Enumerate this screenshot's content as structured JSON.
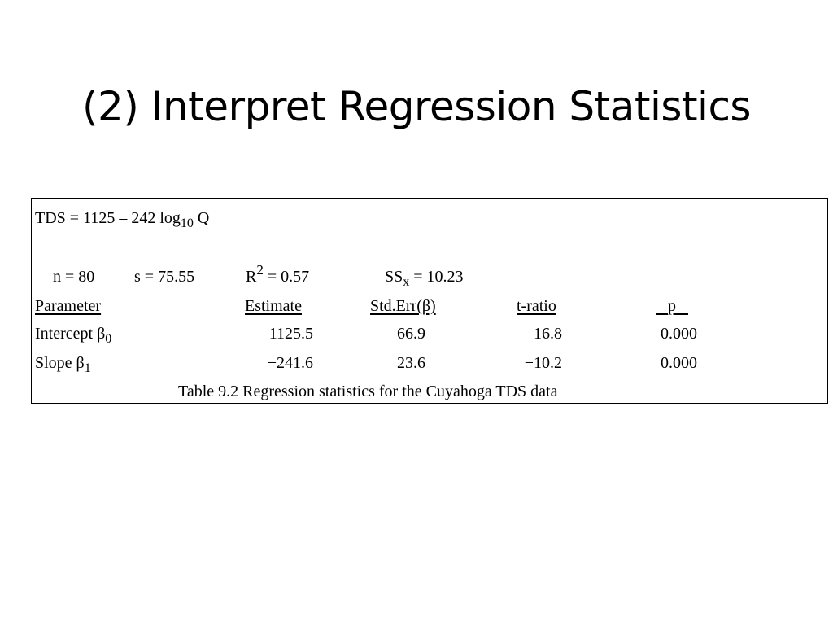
{
  "slide": {
    "title": "(2) Interpret Regression Statistics"
  },
  "equation": {
    "lhs": "TDS = 1125 – 242 log",
    "log_base": "10",
    "variable": "Q"
  },
  "stats": {
    "n": "n = 80",
    "s": "s = 75.55",
    "r2_prefix": "R",
    "r2_exp": "2",
    "r2_value": "= 0.57",
    "ssx_prefix": "SS",
    "ssx_sub": "x",
    "ssx_value": "= 10.23"
  },
  "table": {
    "headers": [
      "Parameter",
      "Estimate",
      "Std.Err(β)",
      "t-ratio",
      "p"
    ],
    "rows": [
      {
        "name": "Intercept β",
        "sub": "0",
        "estimate": "1125.5",
        "std_err": "66.9",
        "t_ratio": "16.8",
        "p": "0.000"
      },
      {
        "name": "Slope  β",
        "sub": "1",
        "estimate": "−241.6",
        "std_err": "23.6",
        "t_ratio": "−10.2",
        "p": "0.000"
      }
    ],
    "caption": "Table 9.2   Regression statistics for the Cuyahoga TDS data"
  }
}
